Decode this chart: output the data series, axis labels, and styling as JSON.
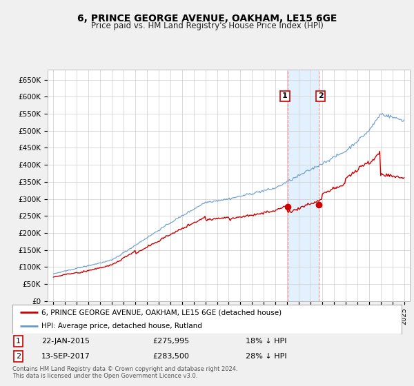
{
  "title": "6, PRINCE GEORGE AVENUE, OAKHAM, LE15 6GE",
  "subtitle": "Price paid vs. HM Land Registry's House Price Index (HPI)",
  "legend_property": "6, PRINCE GEORGE AVENUE, OAKHAM, LE15 6GE (detached house)",
  "legend_hpi": "HPI: Average price, detached house, Rutland",
  "annotation1": {
    "label": "1",
    "date": "22-JAN-2015",
    "price": "£275,995",
    "pct": "18% ↓ HPI",
    "x_year": 2015.06,
    "y": 275995
  },
  "annotation2": {
    "label": "2",
    "date": "13-SEP-2017",
    "price": "£283,500",
    "pct": "28% ↓ HPI",
    "x_year": 2017.71,
    "y": 283500
  },
  "footer": "Contains HM Land Registry data © Crown copyright and database right 2024.\nThis data is licensed under the Open Government Licence v3.0.",
  "y_ticks": [
    0,
    50000,
    100000,
    150000,
    200000,
    250000,
    300000,
    350000,
    400000,
    450000,
    500000,
    550000,
    600000,
    650000
  ],
  "y_tick_labels": [
    "£0",
    "£50K",
    "£100K",
    "£150K",
    "£200K",
    "£250K",
    "£300K",
    "£350K",
    "£400K",
    "£450K",
    "£500K",
    "£550K",
    "£600K",
    "£650K"
  ],
  "ylim": [
    0,
    680000
  ],
  "xlim_start": 1994.5,
  "xlim_end": 2025.5,
  "property_color": "#cc0000",
  "hpi_color": "#6699cc",
  "background_color": "#f0f0f0",
  "plot_bg_color": "#ffffff",
  "grid_color": "#cccccc",
  "shade_color": "#ddeeff",
  "vline_color": "#ff8888"
}
